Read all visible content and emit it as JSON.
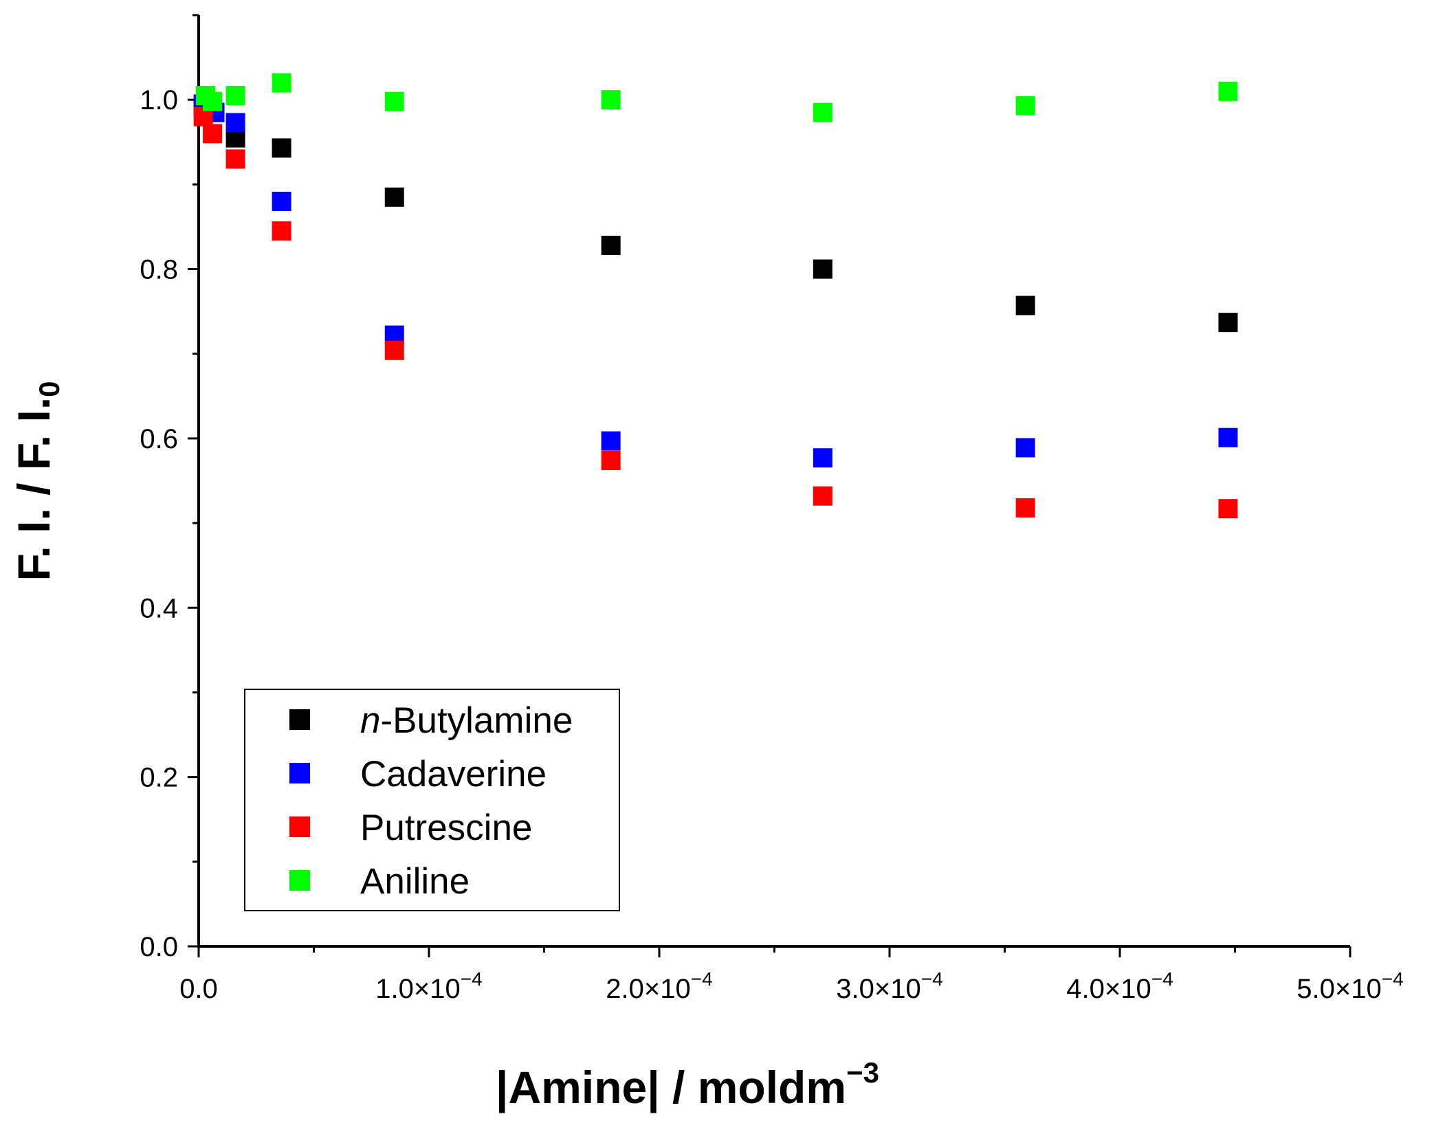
{
  "chart_data": {
    "type": "scatter",
    "title": "",
    "xlabel": "|Amine| / moldm",
    "xlabel_superscript": "−3",
    "ylabel": "F. I. / F. I.",
    "ylabel_subscript": "0",
    "xlim": [
      0,
      0.0005
    ],
    "ylim": [
      0,
      1.1
    ],
    "x_ticks": [
      0,
      0.0001,
      0.0002,
      0.0003,
      0.0004,
      0.0005
    ],
    "x_tick_labels": [
      {
        "mantissa": "0.0",
        "exp": ""
      },
      {
        "mantissa": "1.0×10",
        "exp": "−4"
      },
      {
        "mantissa": "2.0×10",
        "exp": "−4"
      },
      {
        "mantissa": "3.0×10",
        "exp": "−4"
      },
      {
        "mantissa": "4.0×10",
        "exp": "−4"
      },
      {
        "mantissa": "5.0×10",
        "exp": "−4"
      }
    ],
    "y_ticks": [
      0,
      0.2,
      0.4,
      0.6,
      0.8,
      1.0
    ],
    "y_tick_labels": [
      "0.0",
      "0.2",
      "0.4",
      "0.6",
      "0.8",
      "1.0"
    ],
    "legend_position": "bottom-left",
    "series": [
      {
        "name": "n-Butylamine",
        "name_italic": "n",
        "name_rest": "-Butylamine",
        "color": "#000000",
        "x": [
          2e-06,
          7e-06,
          1.6e-05,
          3.6e-05,
          8.5e-05,
          0.000179,
          0.000271,
          0.000359,
          0.000447
        ],
        "y": [
          0.99,
          0.985,
          0.955,
          0.943,
          0.885,
          0.828,
          0.8,
          0.757,
          0.737
        ]
      },
      {
        "name": "Cadaverine",
        "color": "#0000ff",
        "x": [
          2e-06,
          7e-06,
          1.6e-05,
          3.6e-05,
          8.5e-05,
          0.000179,
          0.000271,
          0.000359,
          0.000447
        ],
        "y": [
          0.995,
          0.985,
          0.973,
          0.88,
          0.722,
          0.597,
          0.577,
          0.589,
          0.601
        ]
      },
      {
        "name": "Putrescine",
        "color": "#ff0000",
        "x": [
          2e-06,
          6e-06,
          1.6e-05,
          3.6e-05,
          8.5e-05,
          0.000179,
          0.000271,
          0.000359,
          0.000447
        ],
        "y": [
          0.98,
          0.96,
          0.93,
          0.845,
          0.704,
          0.574,
          0.532,
          0.518,
          0.517
        ]
      },
      {
        "name": "Aniline",
        "color": "#00ff00",
        "x": [
          3e-06,
          6e-06,
          1.6e-05,
          3.6e-05,
          8.5e-05,
          0.000179,
          0.000271,
          0.000359,
          0.000447
        ],
        "y": [
          1.005,
          0.998,
          1.005,
          1.02,
          0.998,
          1.0,
          0.985,
          0.993,
          1.01
        ]
      }
    ]
  }
}
